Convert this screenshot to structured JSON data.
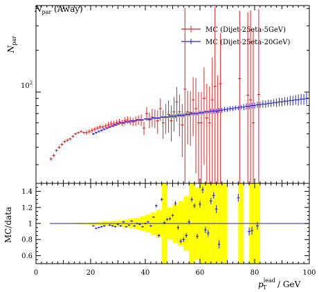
{
  "chart_data": [
    {
      "type": "scatter",
      "panel": "main",
      "title": "N_par (Away)",
      "title_main": "N",
      "title_sub": "par",
      "title_suffix": " (Away)",
      "ylabel_main": "N",
      "ylabel_sub": "par",
      "yscale": "log",
      "xlim": [
        0,
        100
      ],
      "ylim": [
        22,
        420
      ],
      "y_tick_labels": [
        "10",
        "2"
      ],
      "legend_position": "top-right",
      "legend": [
        {
          "label": "MC (Dijet-25eta-5GeV)",
          "color": "#dd2222"
        },
        {
          "label": "MC (Dijet-25eta-20GeV)",
          "color": "#2222dd"
        }
      ],
      "series": [
        {
          "name": "MC (Dijet-25eta-5GeV)",
          "color": "#dd2222",
          "x": [
            5.5,
            6.5,
            7.5,
            8.5,
            9.5,
            10.5,
            11.5,
            12.5,
            13.5,
            14.5,
            15.5,
            16.5,
            17.5,
            18.5,
            19.5,
            20.5,
            21.5,
            22.5,
            23.5,
            24.5,
            25.5,
            26.5,
            27.5,
            28.5,
            29.5,
            30.5,
            31.5,
            32.5,
            33.5,
            34.5,
            35.5,
            36.5,
            37.5,
            38.5,
            39.5,
            40.5,
            41.5,
            42.5,
            43.5,
            44.5,
            45.5,
            46.5,
            47.5,
            48.5,
            49.5,
            50.5,
            51.5,
            52.5,
            53.5,
            54.5,
            55.5,
            56.5,
            57.5,
            58.5,
            59.5,
            60.5,
            61.5,
            62.5,
            63.5,
            64.5,
            65.5,
            66.5,
            67.5,
            74.5,
            77.5,
            78.5,
            79.5,
            81.5
          ],
          "y": [
            33,
            35,
            38,
            40,
            42,
            44,
            45,
            46,
            48,
            50,
            51,
            52,
            51,
            51,
            52,
            53,
            54,
            55,
            56,
            56,
            57,
            58,
            59,
            59,
            60,
            61,
            60,
            62,
            63,
            62,
            61,
            62,
            63,
            63,
            55,
            70,
            63,
            66,
            65,
            62,
            76,
            60,
            66,
            69,
            62,
            72,
            85,
            72,
            58,
            105,
            72,
            71,
            88,
            76,
            60,
            60,
            90,
            65,
            60,
            88,
            110,
            72,
            115,
            125,
            95,
            88,
            60,
            96
          ],
          "yerr": [
            1,
            1,
            1,
            1,
            1,
            1,
            1,
            1,
            1,
            1,
            1,
            1,
            1,
            2,
            2,
            2,
            2,
            2,
            2,
            2,
            2,
            3,
            3,
            3,
            3,
            3,
            3,
            4,
            4,
            4,
            4,
            5,
            5,
            6,
            6,
            8,
            8,
            10,
            10,
            12,
            14,
            14,
            16,
            18,
            18,
            20,
            24,
            24,
            24,
            300,
            30,
            30,
            40,
            50,
            40,
            40,
            60,
            50,
            50,
            90,
            300,
            60,
            150,
            260,
            280,
            300,
            220,
            300
          ]
        },
        {
          "name": "MC (Dijet-25eta-20GeV)",
          "color": "#2222dd",
          "x": [
            21,
            22,
            23,
            24,
            25,
            26,
            27,
            28,
            29,
            30,
            31,
            32,
            33,
            34,
            35,
            36,
            37,
            38,
            39,
            40,
            41,
            42,
            43,
            44,
            45,
            46,
            47,
            48,
            49,
            50,
            51,
            52,
            53,
            54,
            55,
            56,
            57,
            58,
            59,
            60,
            61,
            62,
            63,
            64,
            65,
            66,
            67,
            68,
            69,
            70,
            71,
            72,
            73,
            74,
            75,
            76,
            77,
            78,
            79,
            80,
            81,
            82,
            83,
            84,
            85,
            86,
            87,
            88,
            89,
            90,
            91,
            92,
            93,
            94,
            95,
            96,
            97,
            98,
            99
          ],
          "y": [
            50,
            51,
            52,
            53,
            54,
            55,
            56,
            57,
            58,
            59,
            60,
            60,
            61,
            61,
            62,
            62,
            63,
            63,
            63,
            64,
            64,
            64,
            65,
            65,
            65,
            66,
            66,
            66,
            67,
            67,
            67,
            68,
            68,
            68,
            69,
            69,
            70,
            70,
            70,
            71,
            71,
            72,
            72,
            73,
            73,
            73,
            74,
            74,
            75,
            75,
            76,
            76,
            77,
            77,
            78,
            78,
            79,
            79,
            80,
            80,
            81,
            81,
            82,
            82,
            83,
            83,
            84,
            84,
            85,
            85,
            86,
            86,
            87,
            87,
            88,
            88,
            89,
            89,
            90
          ],
          "yerr": [
            1,
            1,
            1,
            1,
            1,
            1,
            1,
            1,
            1,
            1,
            1,
            1,
            1,
            1,
            1,
            1,
            1,
            1,
            1,
            1,
            1,
            1,
            1,
            1,
            1,
            1,
            1,
            1,
            2,
            2,
            2,
            2,
            2,
            2,
            2,
            2,
            2,
            2,
            2,
            2,
            2,
            2,
            2,
            3,
            3,
            3,
            3,
            3,
            3,
            3,
            3,
            3,
            3,
            3,
            3,
            4,
            4,
            4,
            4,
            4,
            4,
            4,
            5,
            5,
            5,
            5,
            5,
            6,
            6,
            6,
            6,
            6,
            7,
            7,
            7,
            8,
            8,
            8,
            9
          ]
        }
      ]
    },
    {
      "type": "scatter",
      "panel": "ratio",
      "ylabel": "MC/data",
      "xlabel_main": "p",
      "xlabel_sub": "T",
      "xlabel_sup": "lead",
      "xlabel_unit": " / GeV",
      "xlim": [
        0,
        100
      ],
      "ylim": [
        0.5,
        1.5
      ],
      "x_ticks": [
        0,
        20,
        40,
        60,
        80,
        100
      ],
      "x_tick_labels": [
        "0",
        "20",
        "40",
        "60",
        "80",
        "100"
      ],
      "y_ticks": [
        0.6,
        0.8,
        1,
        1.2,
        1.4
      ],
      "y_tick_labels": [
        "0.6",
        "0.8",
        "1",
        "1.2",
        "1.4"
      ],
      "reference_line": 1.0,
      "band_color": "#ffff00",
      "uncertainty_band": {
        "x_edges": [
          0,
          2,
          4,
          6,
          8,
          10,
          12,
          14,
          16,
          18,
          20,
          22,
          24,
          26,
          28,
          30,
          32,
          34,
          36,
          38,
          40,
          42,
          44,
          46,
          48,
          50,
          52,
          54,
          56,
          58,
          60,
          62,
          64,
          66,
          68,
          70,
          72,
          74,
          76,
          78,
          80,
          82,
          84,
          86,
          88,
          90,
          92,
          94,
          96,
          98,
          100
        ],
        "half_width": [
          0,
          0,
          0,
          0,
          0,
          0.005,
          0.006,
          0.008,
          0.01,
          0.012,
          0.015,
          0.02,
          0.025,
          0.03,
          0.035,
          0.04,
          0.05,
          0.06,
          0.07,
          0.09,
          0.11,
          0.14,
          0.17,
          0.7,
          0.2,
          0.24,
          0.28,
          0.34,
          0.7,
          0.45,
          0.7,
          0.7,
          0.7,
          0.6,
          0.7,
          0,
          0,
          0.7,
          0,
          0.7,
          0.7,
          0,
          0,
          0,
          0,
          0,
          0,
          0,
          0,
          0,
          0
        ]
      },
      "series": [
        {
          "name": "MC (Dijet-25eta-5GeV)",
          "color": "#2222dd",
          "x": [
            21,
            22,
            23,
            24,
            25,
            27,
            28,
            29,
            30,
            31,
            32,
            33,
            34,
            35,
            36,
            37,
            38,
            39,
            40,
            41,
            42,
            43,
            44,
            45,
            46,
            47,
            48,
            49,
            50,
            51,
            52,
            53,
            54,
            55,
            56,
            57,
            58,
            59,
            60,
            61,
            62,
            63,
            64,
            65,
            66,
            67,
            74,
            78,
            79,
            81
          ],
          "y": [
            0.97,
            0.94,
            0.95,
            0.96,
            0.97,
            0.98,
            0.97,
            0.96,
            0.99,
            0.97,
            1.02,
            0.96,
            0.98,
            1.03,
            0.97,
            1.0,
            0.99,
            0.96,
            1.0,
            1.02,
            0.97,
            1.08,
            1.22,
            0.85,
            1.3,
            1.01,
            1.05,
            1.06,
            1.1,
            1.25,
            0.95,
            0.78,
            0.8,
            0.85,
            1.02,
            1.3,
            1.22,
            0.84,
            1.24,
            1.42,
            0.92,
            0.88,
            1.28,
            1.35,
            1.18,
            0.74,
            1.32,
            0.9,
            0.91,
            0.97
          ],
          "yerr": [
            0.01,
            0.01,
            0.01,
            0.01,
            0.01,
            0.01,
            0.01,
            0.01,
            0.01,
            0.01,
            0.01,
            0.01,
            0.01,
            0.01,
            0.01,
            0.01,
            0.01,
            0.01,
            0.01,
            0.01,
            0.01,
            0.01,
            0.02,
            0.02,
            0.02,
            0.02,
            0.02,
            0.02,
            0.02,
            0.03,
            0.03,
            0.03,
            0.03,
            0.03,
            0.03,
            0.03,
            0.03,
            0.03,
            0.04,
            0.04,
            0.04,
            0.04,
            0.04,
            0.04,
            0.05,
            0.05,
            0.05,
            0.05,
            0.05,
            0.05
          ]
        },
        {
          "name": "MC (Dijet-25eta-20GeV)",
          "color": "#2222dd",
          "x": [
            20,
            25,
            30,
            35,
            40,
            45,
            50,
            55,
            60,
            65,
            70,
            75,
            80,
            85,
            90,
            95,
            100
          ],
          "y": [
            1,
            1,
            1,
            1,
            1,
            1,
            1,
            1,
            1,
            1,
            1,
            1,
            1,
            1,
            1,
            1,
            1
          ],
          "yerr": [
            0,
            0,
            0,
            0,
            0,
            0,
            0,
            0,
            0,
            0,
            0,
            0,
            0,
            0,
            0,
            0,
            0
          ]
        }
      ]
    }
  ]
}
